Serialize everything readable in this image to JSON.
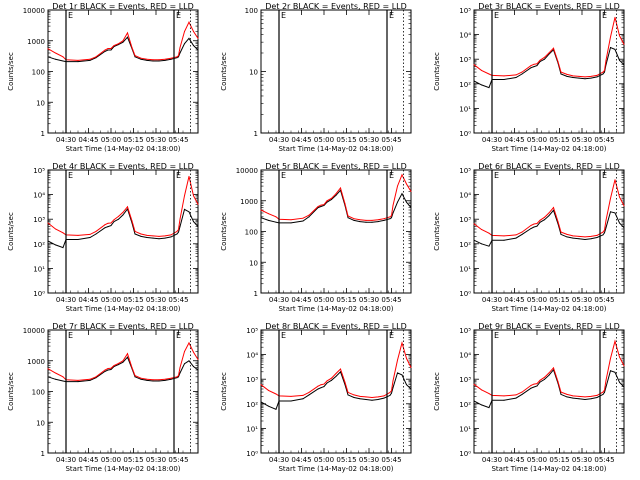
{
  "shared": {
    "ylabel": "Counts/sec",
    "xlabel": "Start Time (14-May-02 04:18:00)",
    "x_ticks": [
      "04:30",
      "04:45",
      "05:00",
      "05:15",
      "05:30",
      "05:45"
    ],
    "x_tick_minutes": [
      12,
      27,
      42,
      57,
      72,
      87
    ],
    "xlim_minutes_from_start": [
      0,
      100
    ],
    "log_scale_y": true,
    "colors": {
      "events": "#000000",
      "lld": "#ff0000",
      "axes": "#000000",
      "background": "#ffffff"
    },
    "marker_letters": [
      "E",
      "E"
    ]
  },
  "chart_data": [
    {
      "type": "line",
      "title": "Det 1r BLACK = Events, RED = LLD",
      "ylim": [
        1,
        10000
      ],
      "y_ticks": [
        1,
        10,
        100,
        1000,
        10000
      ],
      "y_tick_labels": [
        "1",
        "10",
        "100",
        "1000",
        "10000"
      ],
      "x": [
        0,
        5,
        10,
        12,
        20,
        28,
        32,
        38,
        40,
        42,
        44,
        47,
        50,
        53,
        56,
        58,
        62,
        66,
        70,
        74,
        78,
        82,
        86,
        87,
        88,
        91,
        94,
        97,
        100
      ],
      "series": [
        {
          "name": "Events",
          "color": "#000000",
          "values": [
            300,
            250,
            220,
            210,
            210,
            230,
            280,
            450,
            500,
            500,
            650,
            750,
            900,
            1300,
            550,
            300,
            250,
            230,
            220,
            220,
            230,
            250,
            280,
            300,
            400,
            800,
            1200,
            700,
            500
          ]
        },
        {
          "name": "LLD",
          "color": "#ff0000",
          "values": [
            550,
            400,
            300,
            240,
            230,
            250,
            300,
            500,
            560,
            560,
            700,
            800,
            1000,
            1800,
            600,
            330,
            270,
            250,
            240,
            240,
            250,
            270,
            300,
            330,
            600,
            2000,
            4000,
            2000,
            1200
          ]
        }
      ]
    },
    {
      "type": "line",
      "title": "Det 2r BLACK = Events, RED = LLD",
      "ylim": [
        1,
        100
      ],
      "y_ticks": [
        1,
        10,
        100
      ],
      "y_tick_labels": [
        "1",
        "10",
        "100"
      ],
      "x": [],
      "series": []
    },
    {
      "type": "line",
      "title": "Det 3r BLACK = Events, RED = LLD",
      "ylim": [
        1,
        100000
      ],
      "y_ticks": [
        1,
        10,
        100,
        1000,
        10000,
        100000
      ],
      "y_tick_labels": [
        "10⁰",
        "10¹",
        "10²",
        "10³",
        "10⁴",
        "10⁵"
      ],
      "x": [
        0,
        5,
        10,
        12,
        20,
        28,
        32,
        38,
        40,
        42,
        44,
        47,
        50,
        53,
        56,
        58,
        62,
        66,
        70,
        74,
        78,
        82,
        86,
        87,
        88,
        91,
        94,
        97,
        100
      ],
      "series": [
        {
          "name": "Events",
          "color": "#000000",
          "values": [
            130,
            90,
            70,
            150,
            150,
            180,
            250,
            450,
            500,
            550,
            800,
            1000,
            1600,
            2400,
            700,
            250,
            200,
            180,
            170,
            160,
            170,
            190,
            250,
            300,
            600,
            3000,
            2500,
            900,
            600
          ]
        },
        {
          "name": "LLD",
          "color": "#ff0000",
          "values": [
            600,
            350,
            250,
            220,
            210,
            230,
            300,
            550,
            620,
            650,
            900,
            1200,
            1800,
            2800,
            800,
            300,
            240,
            210,
            200,
            190,
            200,
            220,
            300,
            350,
            900,
            8000,
            50000,
            9000,
            4000
          ]
        }
      ]
    },
    {
      "type": "line",
      "title": "Det 4r BLACK = Events, RED = LLD",
      "ylim": [
        1,
        100000
      ],
      "y_ticks": [
        1,
        10,
        100,
        1000,
        10000,
        100000
      ],
      "y_tick_labels": [
        "10⁰",
        "10¹",
        "10²",
        "10³",
        "10⁴",
        "10⁵"
      ],
      "x": [
        0,
        5,
        10,
        12,
        20,
        28,
        32,
        38,
        40,
        42,
        44,
        47,
        50,
        53,
        56,
        58,
        62,
        66,
        70,
        74,
        78,
        82,
        86,
        87,
        88,
        91,
        94,
        97,
        100
      ],
      "series": [
        {
          "name": "Events",
          "color": "#000000",
          "values": [
            130,
            90,
            70,
            150,
            150,
            180,
            250,
            450,
            500,
            550,
            800,
            1000,
            1500,
            2600,
            700,
            250,
            200,
            180,
            170,
            160,
            170,
            190,
            250,
            300,
            500,
            2500,
            2000,
            800,
            500
          ]
        },
        {
          "name": "LLD",
          "color": "#ff0000",
          "values": [
            700,
            400,
            280,
            230,
            220,
            240,
            320,
            600,
            680,
            700,
            950,
            1300,
            1900,
            3200,
            850,
            320,
            250,
            220,
            210,
            200,
            210,
            230,
            320,
            380,
            1000,
            9000,
            55000,
            9000,
            4000
          ]
        }
      ]
    },
    {
      "type": "line",
      "title": "Det 5r BLACK = Events, RED = LLD",
      "ylim": [
        1,
        10000
      ],
      "y_ticks": [
        1,
        10,
        100,
        1000,
        10000
      ],
      "y_tick_labels": [
        "1",
        "10",
        "100",
        "1000",
        "10000"
      ],
      "x": [
        0,
        5,
        10,
        12,
        20,
        28,
        32,
        38,
        40,
        42,
        44,
        47,
        50,
        53,
        56,
        58,
        62,
        66,
        70,
        74,
        78,
        82,
        86,
        87,
        88,
        91,
        94,
        97,
        100
      ],
      "series": [
        {
          "name": "Events",
          "color": "#000000",
          "values": [
            280,
            230,
            200,
            190,
            190,
            220,
            300,
            600,
            650,
            700,
            900,
            1100,
            1500,
            2200,
            700,
            280,
            230,
            210,
            200,
            200,
            210,
            230,
            260,
            280,
            400,
            900,
            1700,
            900,
            600
          ]
        },
        {
          "name": "LLD",
          "color": "#ff0000",
          "values": [
            500,
            380,
            300,
            250,
            240,
            270,
            340,
            650,
            720,
            750,
            1000,
            1200,
            1700,
            2600,
            800,
            320,
            260,
            240,
            230,
            230,
            240,
            260,
            300,
            330,
            700,
            3000,
            7000,
            3500,
            2000
          ]
        }
      ]
    },
    {
      "type": "line",
      "title": "Det 6r BLACK = Events, RED = LLD",
      "ylim": [
        1,
        100000
      ],
      "y_ticks": [
        1,
        10,
        100,
        1000,
        10000,
        100000
      ],
      "y_tick_labels": [
        "10⁰",
        "10¹",
        "10²",
        "10³",
        "10⁴",
        "10⁵"
      ],
      "x": [
        0,
        5,
        10,
        12,
        20,
        28,
        32,
        38,
        40,
        42,
        44,
        47,
        50,
        53,
        56,
        58,
        62,
        66,
        70,
        74,
        78,
        82,
        86,
        87,
        88,
        91,
        94,
        97,
        100
      ],
      "series": [
        {
          "name": "Events",
          "color": "#000000",
          "values": [
            140,
            100,
            80,
            140,
            140,
            170,
            240,
            420,
            480,
            520,
            750,
            950,
            1400,
            2300,
            650,
            240,
            190,
            170,
            160,
            150,
            160,
            180,
            230,
            280,
            450,
            2000,
            1800,
            700,
            450
          ]
        },
        {
          "name": "LLD",
          "color": "#ff0000",
          "values": [
            650,
            380,
            270,
            220,
            210,
            230,
            300,
            560,
            640,
            670,
            900,
            1200,
            1800,
            3000,
            800,
            300,
            240,
            210,
            200,
            190,
            200,
            220,
            300,
            360,
            900,
            7000,
            40000,
            8000,
            3500
          ]
        }
      ]
    },
    {
      "type": "line",
      "title": "Det 7r BLACK = Events, RED = LLD",
      "ylim": [
        1,
        10000
      ],
      "y_ticks": [
        1,
        10,
        100,
        1000,
        10000
      ],
      "y_tick_labels": [
        "1",
        "10",
        "100",
        "1000",
        "10000"
      ],
      "x": [
        0,
        5,
        10,
        12,
        20,
        28,
        32,
        38,
        40,
        42,
        44,
        47,
        50,
        53,
        56,
        58,
        62,
        66,
        70,
        74,
        78,
        82,
        86,
        87,
        88,
        91,
        94,
        97,
        100
      ],
      "series": [
        {
          "name": "Events",
          "color": "#000000",
          "values": [
            300,
            250,
            220,
            210,
            210,
            230,
            280,
            450,
            500,
            520,
            650,
            750,
            900,
            1300,
            550,
            300,
            250,
            230,
            220,
            220,
            230,
            250,
            280,
            300,
            400,
            800,
            1000,
            650,
            500
          ]
        },
        {
          "name": "LLD",
          "color": "#ff0000",
          "values": [
            550,
            400,
            300,
            240,
            230,
            250,
            300,
            500,
            560,
            570,
            700,
            820,
            1000,
            1700,
            600,
            330,
            270,
            250,
            240,
            240,
            250,
            270,
            300,
            330,
            600,
            2000,
            3800,
            1900,
            1100
          ]
        }
      ]
    },
    {
      "type": "line",
      "title": "Det 8r BLACK = Events, RED = LLD",
      "ylim": [
        1,
        100000
      ],
      "y_ticks": [
        1,
        10,
        100,
        1000,
        10000,
        100000
      ],
      "y_tick_labels": [
        "10⁰",
        "10¹",
        "10²",
        "10³",
        "10⁴",
        "10⁵"
      ],
      "x": [
        0,
        5,
        10,
        12,
        20,
        28,
        32,
        38,
        40,
        42,
        44,
        47,
        50,
        53,
        56,
        58,
        62,
        66,
        70,
        74,
        78,
        82,
        86,
        87,
        88,
        91,
        94,
        97,
        100
      ],
      "series": [
        {
          "name": "Events",
          "color": "#000000",
          "values": [
            120,
            80,
            60,
            130,
            130,
            160,
            230,
            400,
            450,
            500,
            700,
            900,
            1300,
            2000,
            600,
            230,
            180,
            160,
            150,
            140,
            150,
            170,
            220,
            270,
            450,
            1800,
            1500,
            600,
            400
          ]
        },
        {
          "name": "LLD",
          "color": "#ff0000",
          "values": [
            600,
            350,
            250,
            210,
            200,
            220,
            290,
            520,
            600,
            630,
            850,
            1100,
            1700,
            2600,
            750,
            290,
            230,
            200,
            190,
            180,
            190,
            210,
            290,
            340,
            850,
            6000,
            30000,
            7000,
            3000
          ]
        }
      ]
    },
    {
      "type": "line",
      "title": "Det 9r BLACK = Events, RED = LLD",
      "ylim": [
        1,
        100000
      ],
      "y_ticks": [
        1,
        10,
        100,
        1000,
        10000,
        100000
      ],
      "y_tick_labels": [
        "10⁰",
        "10¹",
        "10²",
        "10³",
        "10⁴",
        "10⁵"
      ],
      "x": [
        0,
        5,
        10,
        12,
        20,
        28,
        32,
        38,
        40,
        42,
        44,
        47,
        50,
        53,
        56,
        58,
        62,
        66,
        70,
        74,
        78,
        82,
        86,
        87,
        88,
        91,
        94,
        97,
        100
      ],
      "series": [
        {
          "name": "Events",
          "color": "#000000",
          "values": [
            130,
            90,
            70,
            140,
            140,
            170,
            240,
            430,
            480,
            530,
            760,
            980,
            1450,
            2400,
            680,
            240,
            190,
            170,
            160,
            150,
            160,
            180,
            240,
            290,
            480,
            2200,
            1900,
            750,
            480
          ]
        },
        {
          "name": "LLD",
          "color": "#ff0000",
          "values": [
            620,
            370,
            260,
            220,
            210,
            230,
            300,
            560,
            630,
            660,
            900,
            1200,
            1800,
            2900,
            800,
            300,
            240,
            210,
            200,
            190,
            200,
            220,
            300,
            360,
            900,
            7000,
            35000,
            8000,
            3500
          ]
        }
      ]
    }
  ]
}
